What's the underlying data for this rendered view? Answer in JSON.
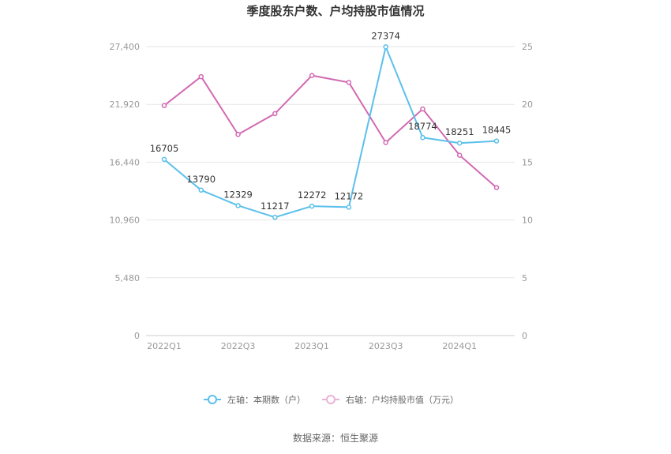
{
  "chart_data": {
    "type": "line",
    "title": "季度股东户数、户均持股市值情况",
    "categories": [
      "2022Q1",
      "2022Q2",
      "2022Q3",
      "2022Q4",
      "2023Q1",
      "2023Q2",
      "2023Q3",
      "2023Q4",
      "2024Q1",
      "2024Q2"
    ],
    "x_tick_labels": [
      "2022Q1",
      "2022Q3",
      "2023Q1",
      "2023Q3",
      "2024Q1"
    ],
    "left_axis": {
      "ticks": [
        "0",
        "5,480",
        "10,960",
        "16,440",
        "21,920",
        "27,400"
      ],
      "ylim": [
        0,
        27400
      ]
    },
    "right_axis": {
      "ticks": [
        "0",
        "5",
        "10",
        "15",
        "20",
        "25"
      ],
      "ylim": [
        0,
        25
      ]
    },
    "series": [
      {
        "name": "左轴：本期数（户）",
        "axis": "left",
        "color": "#5bc0eb",
        "values": [
          16705,
          13790,
          12329,
          11217,
          12272,
          12172,
          27374,
          18774,
          18251,
          18445
        ],
        "labels": [
          "16705",
          "13790",
          "12329",
          "11217",
          "12272",
          "12172",
          "27374",
          "18774",
          "18251",
          "18445"
        ]
      },
      {
        "name": "右轴：户均持股市值（万元）",
        "axis": "right",
        "color": "#d269b2",
        "values": [
          19.9,
          22.4,
          17.4,
          19.2,
          22.5,
          21.9,
          16.7,
          19.6,
          15.6,
          12.8
        ]
      }
    ],
    "legend_position": "bottom",
    "grid": true
  },
  "footer": {
    "source": "数据来源：恒生聚源"
  }
}
